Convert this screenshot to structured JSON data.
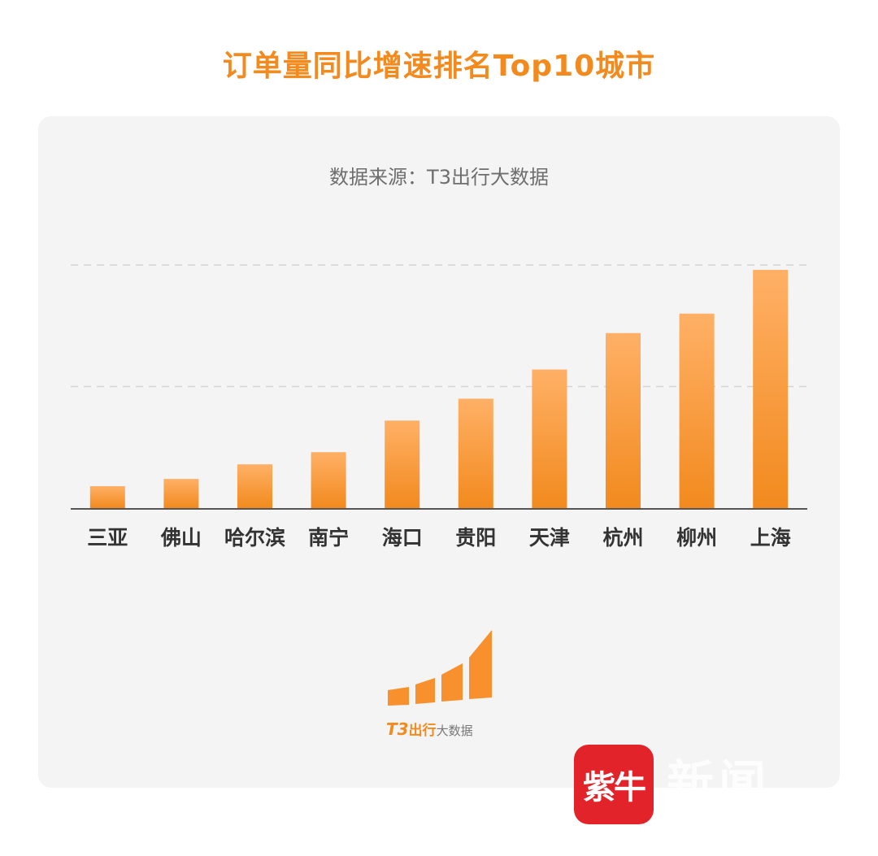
{
  "page": {
    "title": "订单量同比增速排名Top10城市",
    "source": "数据来源：T3出行大数据"
  },
  "chart_data": {
    "type": "bar",
    "categories": [
      "三亚",
      "佛山",
      "哈尔滨",
      "南宁",
      "海口",
      "贵阳",
      "天津",
      "杭州",
      "柳州",
      "上海"
    ],
    "values": [
      9,
      12,
      18,
      23,
      36,
      45,
      57,
      72,
      80,
      98
    ],
    "ylim": [
      0,
      100
    ],
    "gridlines": [
      50,
      100
    ],
    "grid": true,
    "legend": "none",
    "colors": {
      "bar_top": "#ffb066",
      "bar_bottom": "#f28a1e",
      "grid": "#d4d4d4",
      "axis": "#555555",
      "label": "#333333"
    }
  },
  "logo": {
    "brand": "T3出行",
    "brand_big": "T3",
    "brand_rest": "出行",
    "suffix": "大数据",
    "icon": "rising-bars-logo-icon"
  },
  "watermark": {
    "badge": "紫牛",
    "text": "新闻"
  }
}
